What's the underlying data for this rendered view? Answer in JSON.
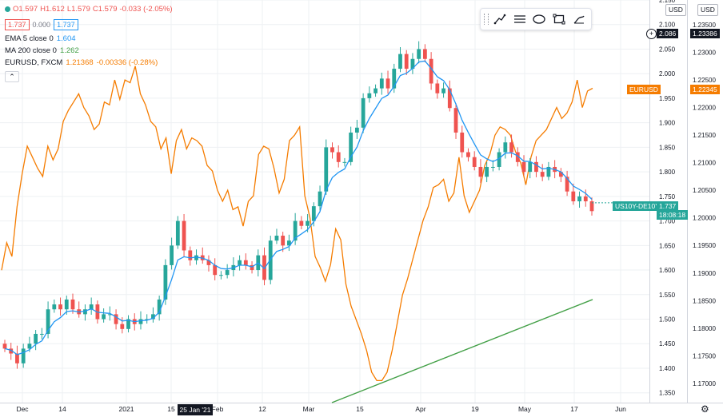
{
  "legend": {
    "ohlc": {
      "o": "O1.597",
      "h": "H1.612",
      "l": "L1.579",
      "c": "C1.579",
      "chg": "-0.033 (-2.05%)"
    },
    "price_box": "1.737",
    "mid_value": "0.000",
    "price_box2": "1.737",
    "ema_label": "EMA 5 close 0",
    "ema_value": "1.604",
    "ma_label": "MA 200 close 0",
    "ma_value": "1.262",
    "eur_label": "EURUSD, FXCM",
    "eur_value": "1.21368",
    "eur_chg": "-0.00336 (-0.28%)",
    "collapse_icon": "chevron-up-icon"
  },
  "toolbar": {
    "icons": [
      "grip-icon",
      "trendline-icon",
      "horizontal-lines-icon",
      "ellipse-icon",
      "rectangle-icon",
      "brush-icon"
    ]
  },
  "axis_heads": {
    "left": "USD",
    "right": "USD"
  },
  "tags": {
    "top_left": "2.086",
    "top_right": "1.23386",
    "eur_label": "EURUSD",
    "eur_value": "1.22345",
    "sym_label": "US10Y-DE10Y",
    "sym_value": "1.737",
    "countdown": "18:08:18"
  },
  "date_tag": "25 Jan '21",
  "colors": {
    "up": "#26a69a",
    "down": "#ef5350",
    "ema": "#2196f3",
    "ma": "#43a047",
    "eur": "#f57c00",
    "grid": "#eef0f3"
  },
  "chart_data": [
    {
      "type": "candlestick",
      "symbol": "US10Y-DE10Y",
      "x_ticks": [
        "Dec",
        "14",
        "2021",
        "15",
        "Feb",
        "12",
        "Mar",
        "15",
        "Apr",
        "19",
        "May",
        "17",
        "Jun"
      ],
      "y_ticks": [
        1.35,
        1.4,
        1.45,
        1.5,
        1.55,
        1.6,
        1.65,
        1.7,
        1.75,
        1.8,
        1.85,
        1.9,
        1.95,
        2.0,
        2.05,
        2.1,
        2.15
      ],
      "ylim": [
        1.33,
        2.15
      ],
      "close": [
        1.44,
        1.43,
        1.41,
        1.44,
        1.45,
        1.47,
        1.47,
        1.52,
        1.53,
        1.52,
        1.54,
        1.52,
        1.51,
        1.52,
        1.53,
        1.5,
        1.51,
        1.51,
        1.49,
        1.48,
        1.5,
        1.49,
        1.5,
        1.5,
        1.51,
        1.54,
        1.61,
        1.65,
        1.7,
        1.64,
        1.62,
        1.63,
        1.62,
        1.61,
        1.59,
        1.59,
        1.6,
        1.61,
        1.62,
        1.61,
        1.6,
        1.63,
        1.58,
        1.66,
        1.67,
        1.65,
        1.66,
        1.7,
        1.69,
        1.7,
        1.73,
        1.76,
        1.85,
        1.84,
        1.82,
        1.82,
        1.88,
        1.89,
        1.95,
        1.96,
        1.97,
        1.99,
        1.97,
        2.01,
        2.04,
        2.01,
        2.03,
        2.05,
        2.03,
        1.98,
        1.96,
        1.97,
        1.93,
        1.88,
        1.84,
        1.83,
        1.81,
        1.79,
        1.81,
        1.81,
        1.84,
        1.86,
        1.84,
        1.82,
        1.8,
        1.82,
        1.8,
        1.79,
        1.81,
        1.8,
        1.79,
        1.76,
        1.74,
        1.75,
        1.74,
        1.72
      ],
      "ema5_close": 1.604,
      "ma200": {
        "x": [
          "2021-03-01",
          "2021-05-24"
        ],
        "values": [
          1.33,
          1.54
        ]
      },
      "last": 1.737
    },
    {
      "type": "line",
      "symbol": "EURUSD",
      "y_ticks": [
        1.17,
        1.175,
        1.18,
        1.185,
        1.19,
        1.195,
        1.2,
        1.205,
        1.21,
        1.215,
        1.22,
        1.225,
        1.23,
        1.235
      ],
      "ylim": [
        1.1665,
        1.2395
      ],
      "values": [
        1.1905,
        1.1955,
        1.193,
        1.202,
        1.208,
        1.213,
        1.211,
        1.209,
        1.2075,
        1.213,
        1.2105,
        1.2125,
        1.2175,
        1.2195,
        1.221,
        1.2225,
        1.22,
        1.2185,
        1.216,
        1.217,
        1.221,
        1.2205,
        1.225,
        1.2215,
        1.225,
        1.2245,
        1.2275,
        1.2225,
        1.2205,
        1.2175,
        1.2165,
        1.2125,
        1.2145,
        1.208,
        1.214,
        1.216,
        1.2125,
        1.2145,
        1.214,
        1.213,
        1.2095,
        1.2085,
        1.205,
        1.203,
        1.205,
        1.2015,
        1.202,
        1.1985,
        1.203,
        1.204,
        1.2115,
        1.213,
        1.2125,
        1.209,
        1.2045,
        1.207,
        1.214,
        1.215,
        1.2165,
        1.204,
        1.2,
        1.193,
        1.191,
        1.1885,
        1.1915,
        1.198,
        1.196,
        1.188,
        1.184,
        1.1815,
        1.179,
        1.176,
        1.172,
        1.1705,
        1.1705,
        1.172,
        1.176,
        1.181,
        1.186,
        1.189,
        1.1925,
        1.196,
        1.1995,
        1.202,
        1.2055,
        1.206,
        1.207,
        1.203,
        1.2045,
        1.211,
        1.204,
        1.201,
        1.203,
        1.205,
        1.2095,
        1.2115,
        1.215,
        1.2165,
        1.216,
        1.215,
        1.212,
        1.21,
        1.206,
        1.211,
        1.214,
        1.215,
        1.216,
        1.218,
        1.22,
        1.218,
        1.219,
        1.221,
        1.225,
        1.22,
        1.223,
        1.2235
      ],
      "last": 1.22345
    }
  ]
}
